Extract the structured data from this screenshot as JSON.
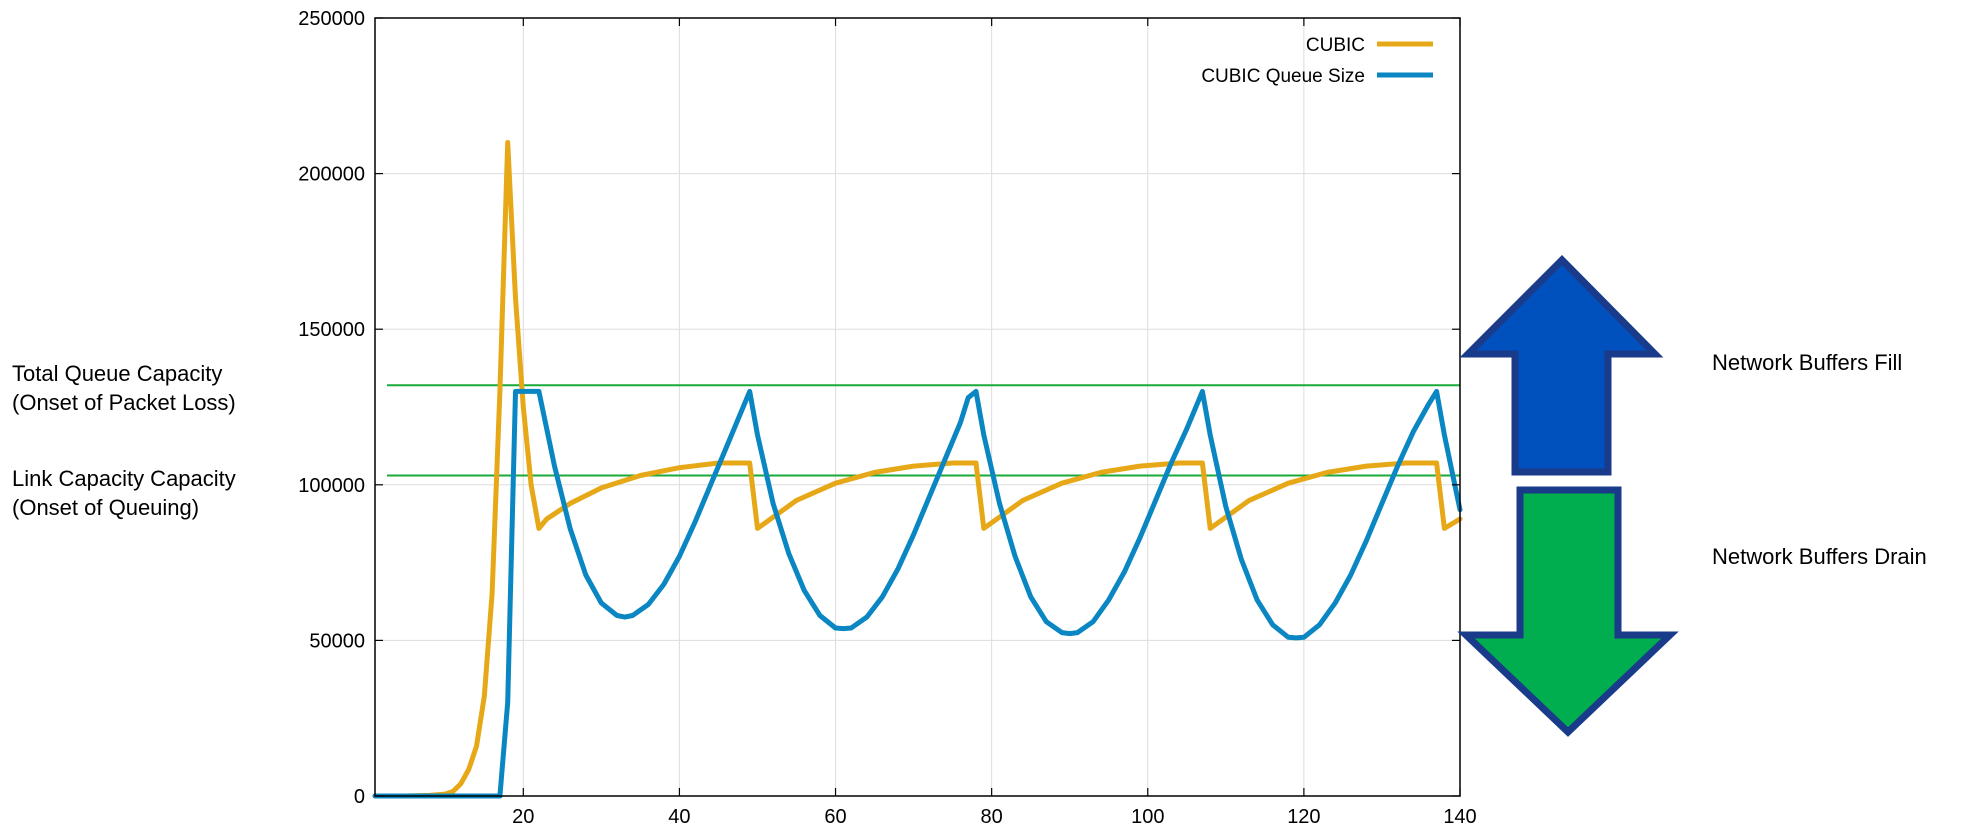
{
  "annotations": {
    "total_queue_line1": "Total Queue Capacity",
    "total_queue_line2": "(Onset of Packet Loss)",
    "link_capacity_line1": "Link Capacity Capacity",
    "link_capacity_line2": "(Onset of Queuing)",
    "buffers_fill": "Network Buffers Fill",
    "buffers_drain": "Network Buffers Drain"
  },
  "colors": {
    "cubic": "#E6A817",
    "queue": "#0A86C2",
    "threshold": "#1AAA3A",
    "grid": "#dddddd",
    "fill_arrow": "#0050BE",
    "drain_arrow": "#00AD4F",
    "arrow_outline": "#1A3A8A"
  },
  "chart_data": {
    "type": "line",
    "title": "",
    "xlabel": "",
    "ylabel": "",
    "xlim": [
      1,
      140
    ],
    "ylim": [
      0,
      250000
    ],
    "xticks": [
      20,
      40,
      60,
      80,
      100,
      120,
      140
    ],
    "yticks": [
      0,
      50000,
      100000,
      150000,
      200000,
      250000
    ],
    "grid": true,
    "legend_position": "top-right",
    "reference_lines": [
      {
        "value": 132000
      },
      {
        "value": 103000
      }
    ],
    "series": [
      {
        "name": "CUBIC",
        "x": [
          1,
          5,
          8,
          10,
          11,
          12,
          13,
          14,
          15,
          16,
          17,
          18,
          19,
          20,
          21,
          22,
          23,
          26,
          30,
          35,
          40,
          45,
          49,
          50,
          55,
          60,
          65,
          70,
          75,
          78,
          79,
          84,
          89,
          94,
          99,
          104,
          107,
          108,
          113,
          118,
          123,
          128,
          133,
          137,
          138,
          140
        ],
        "y": [
          0,
          0,
          200,
          600,
          1500,
          4000,
          8500,
          16000,
          32000,
          65000,
          130000,
          210000,
          160000,
          125000,
          100000,
          86000,
          89000,
          94000,
          99000,
          103000,
          105500,
          107000,
          107000,
          86000,
          95000,
          100500,
          104000,
          106000,
          107000,
          107000,
          86000,
          95000,
          100500,
          104000,
          106000,
          107000,
          107000,
          86000,
          95000,
          100500,
          104000,
          106000,
          107000,
          107000,
          86000,
          89000
        ]
      },
      {
        "name": "CUBIC Queue Size",
        "x": [
          1,
          17,
          18,
          19,
          20,
          21,
          22,
          24,
          26,
          28,
          30,
          32,
          33,
          34,
          36,
          38,
          40,
          42,
          44,
          46,
          48,
          49,
          50,
          52,
          54,
          56,
          58,
          60,
          61,
          62,
          64,
          66,
          68,
          70,
          72,
          74,
          76,
          77,
          78,
          79,
          81,
          83,
          85,
          87,
          89,
          90,
          91,
          93,
          95,
          97,
          99,
          101,
          103,
          105,
          107,
          108,
          110,
          112,
          114,
          116,
          118,
          119,
          120,
          122,
          124,
          126,
          128,
          130,
          132,
          134,
          136,
          137,
          138,
          140
        ],
        "y": [
          0,
          0,
          30000,
          130000,
          130000,
          130000,
          130000,
          106000,
          86000,
          71000,
          62000,
          58000,
          57500,
          58000,
          61500,
          68000,
          77000,
          88000,
          100000,
          112000,
          124000,
          130000,
          116000,
          94000,
          78000,
          66000,
          58000,
          54000,
          53800,
          54000,
          57500,
          64000,
          73000,
          84000,
          96000,
          108000,
          120000,
          128000,
          130000,
          116000,
          94000,
          77000,
          64000,
          56000,
          52500,
          52200,
          52500,
          56000,
          63000,
          72000,
          83000,
          95000,
          107000,
          118000,
          130000,
          116000,
          93000,
          76000,
          63000,
          55000,
          51000,
          50800,
          51000,
          55000,
          62000,
          71000,
          82000,
          94000,
          106000,
          117000,
          126000,
          130000,
          116000,
          92000
        ]
      }
    ]
  }
}
